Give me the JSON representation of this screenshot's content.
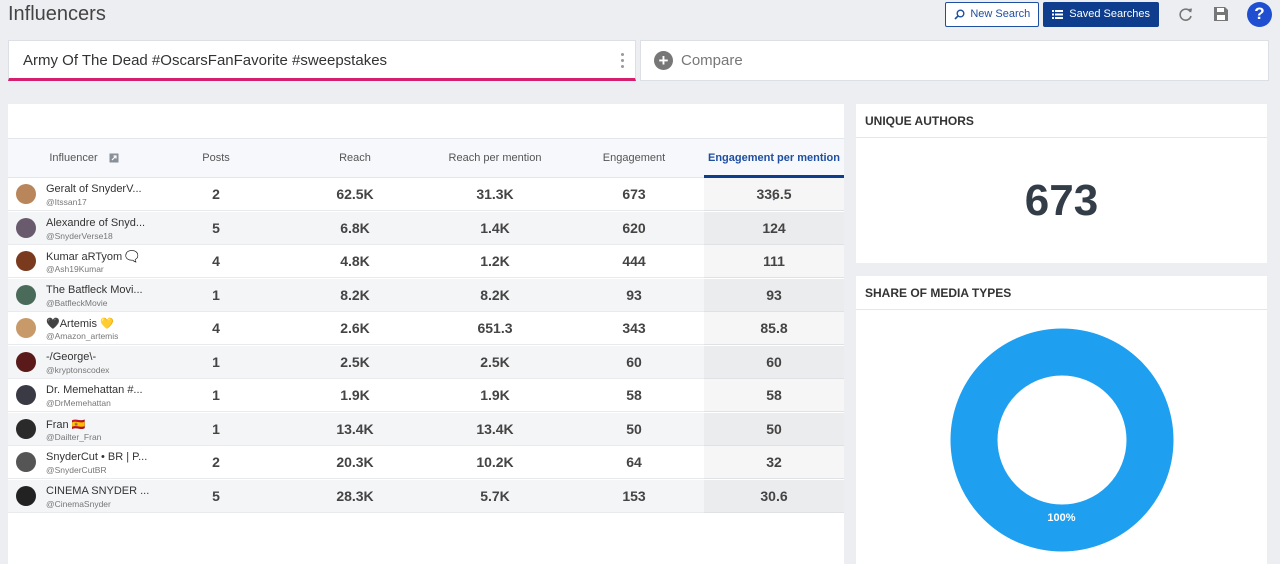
{
  "page": {
    "title": "Influencers"
  },
  "toolbar": {
    "new_search": "New Search",
    "saved_searches": "Saved Searches"
  },
  "search": {
    "query": "Army Of The Dead #OscarsFanFavorite #sweepstakes",
    "compare_label": "Compare"
  },
  "table": {
    "columns": [
      "Influencer",
      "Posts",
      "Reach",
      "Reach per mention",
      "Engagement",
      "Engagement per mention"
    ],
    "sort_column": "Engagement per mention",
    "rows": [
      {
        "name": "Geralt of SnyderV...",
        "handle": "@Itssan17",
        "posts": "2",
        "reach": "62.5K",
        "rpm": "31.3K",
        "engagement": "673",
        "epm": "336.5",
        "avatar_color": "#b8865a"
      },
      {
        "name": "Alexandre of Snyd...",
        "handle": "@SnyderVerse18",
        "posts": "5",
        "reach": "6.8K",
        "rpm": "1.4K",
        "engagement": "620",
        "epm": "124",
        "avatar_color": "#6a5a6e"
      },
      {
        "name": "Kumar aRTyom 🗨️",
        "handle": "@Ash19Kumar",
        "posts": "4",
        "reach": "4.8K",
        "rpm": "1.2K",
        "engagement": "444",
        "epm": "111",
        "avatar_color": "#7a3a1e"
      },
      {
        "name": "The Batfleck Movi...",
        "handle": "@BatfleckMovie",
        "posts": "1",
        "reach": "8.2K",
        "rpm": "8.2K",
        "engagement": "93",
        "epm": "93",
        "avatar_color": "#4a6a5a"
      },
      {
        "name": "🖤Artemis 💛",
        "handle": "@Amazon_artemis",
        "posts": "4",
        "reach": "2.6K",
        "rpm": "651.3",
        "engagement": "343",
        "epm": "85.8",
        "avatar_color": "#c89a6a"
      },
      {
        "name": "-/George\\-",
        "handle": "@kryptonscodex",
        "posts": "1",
        "reach": "2.5K",
        "rpm": "2.5K",
        "engagement": "60",
        "epm": "60",
        "avatar_color": "#5a1a1a"
      },
      {
        "name": "Dr. Memehattan #...",
        "handle": "@DrMemehattan",
        "posts": "1",
        "reach": "1.9K",
        "rpm": "1.9K",
        "engagement": "58",
        "epm": "58",
        "avatar_color": "#3a3a44"
      },
      {
        "name": "Fran 🇪🇸",
        "handle": "@Dailter_Fran",
        "posts": "1",
        "reach": "13.4K",
        "rpm": "13.4K",
        "engagement": "50",
        "epm": "50",
        "avatar_color": "#2a2a2a"
      },
      {
        "name": "SnyderCut • BR | P...",
        "handle": "@SnyderCutBR",
        "posts": "2",
        "reach": "20.3K",
        "rpm": "10.2K",
        "engagement": "64",
        "epm": "32",
        "avatar_color": "#555555"
      },
      {
        "name": "CINEMA SNYDER ...",
        "handle": "@CinemaSnyder",
        "posts": "5",
        "reach": "28.3K",
        "rpm": "5.7K",
        "engagement": "153",
        "epm": "30.6",
        "avatar_color": "#222222"
      }
    ]
  },
  "unique_authors": {
    "title": "UNIQUE AUTHORS",
    "value": "673"
  },
  "media_types": {
    "title": "SHARE OF MEDIA TYPES",
    "percent_label": "100%",
    "share": 1.0,
    "color": "#1e9ff0"
  }
}
